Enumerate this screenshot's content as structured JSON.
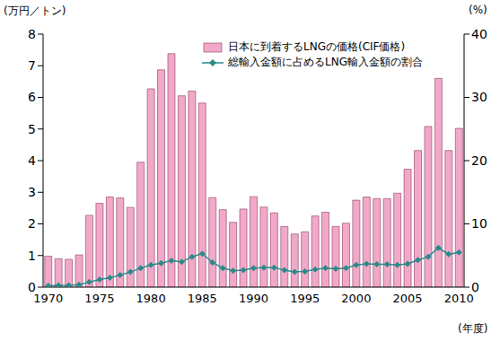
{
  "chart_data": {
    "type": "bar",
    "y_label": "(万円／トン)",
    "y2_label": "(%)",
    "x_label": "(年度)",
    "categories": [
      "1970",
      null,
      null,
      null,
      null,
      "1975",
      null,
      null,
      null,
      null,
      "1980",
      null,
      null,
      null,
      null,
      "1985",
      null,
      null,
      null,
      null,
      "1990",
      null,
      null,
      null,
      null,
      "1995",
      null,
      null,
      null,
      null,
      "2000",
      null,
      null,
      null,
      null,
      "2005",
      null,
      null,
      null,
      null,
      "2010"
    ],
    "series": [
      {
        "name": "日本に到着するLNGの価格(CIF価格)",
        "type": "bar",
        "color": "#f2a9c9",
        "values": [
          0.98,
          0.9,
          0.88,
          1.02,
          2.27,
          2.65,
          2.85,
          2.82,
          2.52,
          3.95,
          6.27,
          6.87,
          7.38,
          6.05,
          6.2,
          5.82,
          2.83,
          2.45,
          2.05,
          2.47,
          2.86,
          2.53,
          2.35,
          1.92,
          1.68,
          1.75,
          2.25,
          2.37,
          1.92,
          2.02,
          2.75,
          2.85,
          2.8,
          2.8,
          2.97,
          3.73,
          4.32,
          5.08,
          6.6,
          4.32,
          5.02
        ]
      },
      {
        "name": "総輸入金額に占めるLNG輸入金額の割合",
        "type": "line",
        "axis": "y2",
        "marker": "diamond",
        "color": "#2a8a8a",
        "values": [
          0.2,
          0.3,
          0.3,
          0.4,
          0.8,
          1.2,
          1.5,
          1.9,
          2.4,
          3.0,
          3.5,
          3.8,
          4.2,
          4.0,
          4.8,
          5.3,
          3.9,
          3.0,
          2.6,
          2.7,
          3.0,
          3.1,
          3.1,
          2.7,
          2.4,
          2.5,
          2.8,
          3.0,
          2.9,
          3.0,
          3.5,
          3.7,
          3.6,
          3.6,
          3.5,
          3.7,
          4.3,
          4.8,
          6.2,
          5.2,
          5.5
        ]
      }
    ],
    "ylim": [
      0,
      8
    ],
    "yticks": [
      0,
      1,
      2,
      3,
      4,
      5,
      6,
      7,
      8
    ],
    "y2lim": [
      0,
      40
    ],
    "y2ticks": [
      0,
      10,
      20,
      30,
      40
    ],
    "legend": "top"
  }
}
